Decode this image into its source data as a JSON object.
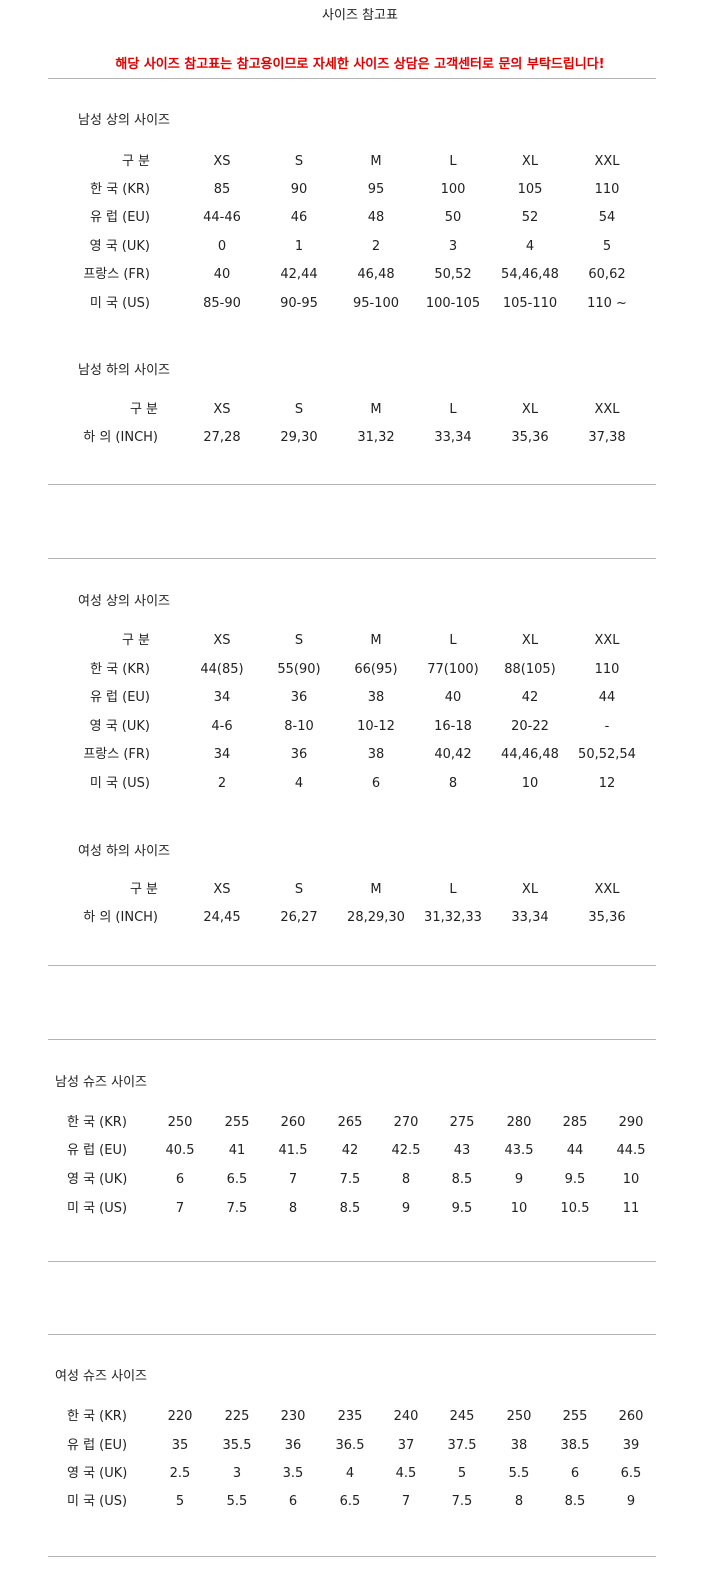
{
  "title": "사이즈 참고표",
  "notice": "해당 사이즈 참고표는 참고용이므로 자세한 사이즈 상담은 고객센터로 문의 부탁드립니다!",
  "colors": {
    "notice": "#e00000",
    "divider": "#b5b5b5"
  },
  "sections": [
    {
      "heading": "남성 상의 사이즈",
      "header": [
        "구 분",
        "XS",
        "S",
        "M",
        "L",
        "XL",
        "XXL"
      ],
      "rows": [
        [
          "한 국 (KR)",
          "85",
          "90",
          "95",
          "100",
          "105",
          "110"
        ],
        [
          "유 럽 (EU)",
          "44-46",
          "46",
          "48",
          "50",
          "52",
          "54"
        ],
        [
          "영 국 (UK)",
          "0",
          "1",
          "2",
          "3",
          "4",
          "5"
        ],
        [
          "프랑스 (FR)",
          "40",
          "42,44",
          "46,48",
          "50,52",
          "54,46,48",
          "60,62"
        ],
        [
          "미 국 (US)",
          "85-90",
          "90-95",
          "95-100",
          "100-105",
          "105-110",
          "110 ~"
        ]
      ]
    },
    {
      "heading": "남성 하의 사이즈",
      "header": [
        "구 분",
        "XS",
        "S",
        "M",
        "L",
        "XL",
        "XXL"
      ],
      "rows": [
        [
          "하 의 (INCH)",
          "27,28",
          "29,30",
          "31,32",
          "33,34",
          "35,36",
          "37,38"
        ]
      ]
    },
    {
      "heading": "여성 상의 사이즈",
      "header": [
        "구 분",
        "XS",
        "S",
        "M",
        "L",
        "XL",
        "XXL"
      ],
      "rows": [
        [
          "한 국 (KR)",
          "44(85)",
          "55(90)",
          "66(95)",
          "77(100)",
          "88(105)",
          "110"
        ],
        [
          "유 럽 (EU)",
          "34",
          "36",
          "38",
          "40",
          "42",
          "44"
        ],
        [
          "영 국 (UK)",
          "4-6",
          "8-10",
          "10-12",
          "16-18",
          "20-22",
          "-"
        ],
        [
          "프랑스 (FR)",
          "34",
          "36",
          "38",
          "40,42",
          "44,46,48",
          "50,52,54"
        ],
        [
          "미 국 (US)",
          "2",
          "4",
          "6",
          "8",
          "10",
          "12"
        ]
      ]
    },
    {
      "heading": "여성 하의 사이즈",
      "header": [
        "구 분",
        "XS",
        "S",
        "M",
        "L",
        "XL",
        "XXL"
      ],
      "rows": [
        [
          "하 의 (INCH)",
          "24,45",
          "26,27",
          "28,29,30",
          "31,32,33",
          "33,34",
          "35,36"
        ]
      ]
    },
    {
      "heading": "남성 슈즈 사이즈",
      "rows": [
        [
          "한 국 (KR)",
          "250",
          "255",
          "260",
          "265",
          "270",
          "275",
          "280",
          "285",
          "290"
        ],
        [
          "유 럽 (EU)",
          "40.5",
          "41",
          "41.5",
          "42",
          "42.5",
          "43",
          "43.5",
          "44",
          "44.5"
        ],
        [
          "영 국 (UK)",
          "6",
          "6.5",
          "7",
          "7.5",
          "8",
          "8.5",
          "9",
          "9.5",
          "10"
        ],
        [
          "미 국 (US)",
          "7",
          "7.5",
          "8",
          "8.5",
          "9",
          "9.5",
          "10",
          "10.5",
          "11"
        ]
      ]
    },
    {
      "heading": "여성 슈즈 사이즈",
      "rows": [
        [
          "한 국 (KR)",
          "220",
          "225",
          "230",
          "235",
          "240",
          "245",
          "250",
          "255",
          "260"
        ],
        [
          "유 럽 (EU)",
          "35",
          "35.5",
          "36",
          "36.5",
          "37",
          "37.5",
          "38",
          "38.5",
          "39"
        ],
        [
          "영 국 (UK)",
          "2.5",
          "3",
          "3.5",
          "4",
          "4.5",
          "5",
          "5.5",
          "6",
          "6.5"
        ],
        [
          "미 국 (US)",
          "5",
          "5.5",
          "6",
          "6.5",
          "7",
          "7.5",
          "8",
          "8.5",
          "9"
        ]
      ]
    }
  ]
}
